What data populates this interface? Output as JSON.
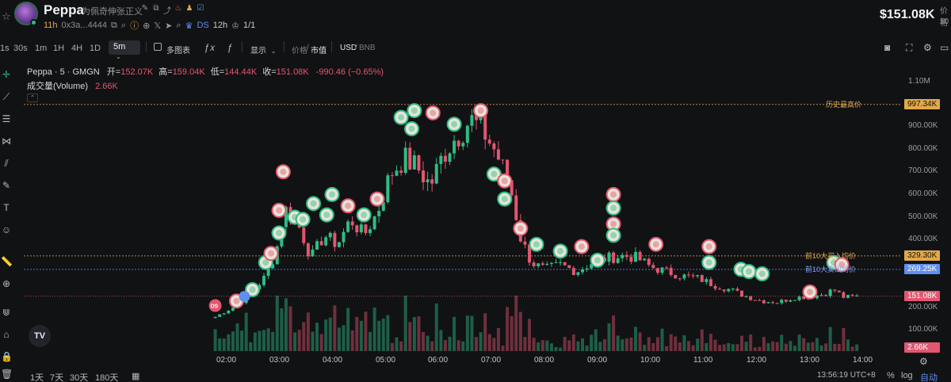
{
  "header": {
    "token_name": "Peppa",
    "subtitle": "为佩奇伸张正义",
    "age": "11h",
    "address": "0x3a...4444",
    "ds_label": "DS",
    "ds_age": "12h",
    "holders_ratio": "1/1",
    "price": "$151.08K",
    "right_label_1": "价格",
    "right_label_2": "$0"
  },
  "toolbar": {
    "timeframes": [
      "1s",
      "30s",
      "1m",
      "1H",
      "4H",
      "1D"
    ],
    "active_timeframe": "5m",
    "multi_chart": "多图表",
    "display": "显示",
    "price_label": "价格",
    "mcap_label": "市值",
    "currency_usd": "USD",
    "currency_bnb": "BNB"
  },
  "legend": {
    "symbol": "Peppa · 5 · GMGN",
    "open_label": "开=",
    "open": "152.07K",
    "high_label": "高=",
    "high": "159.04K",
    "low_label": "低=",
    "low": "144.44K",
    "close_label": "收=",
    "close": "151.08K",
    "change": "-990.46 (−0.65%)",
    "volume_label": "成交量(Volume)",
    "volume": "2.66K"
  },
  "price_lines": {
    "ath_label": "历史最高价",
    "ath_value": "997.34K",
    "top10_buy_label": "前10大买入均价",
    "top10_buy_value": "329.30K",
    "top10_sell_label": "前10大卖出均价",
    "top10_sell_value": "269.25K",
    "last_value": "151.08K",
    "volume_badge": "2.66K"
  },
  "bottom": {
    "ranges": [
      "1天",
      "7天",
      "30天",
      "180天"
    ],
    "clock": "13:56:19 UTC+8",
    "percent": "%",
    "log": "log",
    "auto": "自动"
  },
  "colors": {
    "up": "#2ebd85",
    "down": "#e2566f",
    "ath": "#e0a94a",
    "buy_avg": "#e0a94a",
    "sell_avg": "#5e8ff0",
    "background": "#111214"
  },
  "chart_data": {
    "type": "candlestick",
    "x_ticks": [
      "02:00",
      "03:00",
      "04:00",
      "05:00",
      "06:00",
      "07:00",
      "08:00",
      "09:00",
      "10:00",
      "11:00",
      "12:00",
      "13:00",
      "14:00"
    ],
    "y_ticks": [
      "1.10M",
      "1.00M",
      "900.00K",
      "800.00K",
      "700.00K",
      "600.00K",
      "500.00K",
      "400.00K",
      "300.00K",
      "200.00K",
      "100.00K",
      "0.00"
    ],
    "ylim": [
      0,
      1100000
    ],
    "series": [
      {
        "name": "Peppa",
        "close_price_approx": [
          [
            1.8,
            60000
          ],
          [
            2.2,
            110000
          ],
          [
            2.5,
            170000
          ],
          [
            2.75,
            240000
          ],
          [
            2.95,
            350000
          ],
          [
            3.1,
            540000
          ],
          [
            3.4,
            450000
          ],
          [
            3.6,
            320000
          ],
          [
            3.85,
            420000
          ],
          [
            4.1,
            380000
          ],
          [
            4.35,
            490000
          ],
          [
            4.6,
            420000
          ],
          [
            4.85,
            520000
          ],
          [
            5.1,
            690000
          ],
          [
            5.35,
            760000
          ],
          [
            5.6,
            720000
          ],
          [
            5.85,
            640000
          ],
          [
            6.1,
            780000
          ],
          [
            6.35,
            860000
          ],
          [
            6.6,
            930000
          ],
          [
            6.85,
            880000
          ],
          [
            7.1,
            780000
          ],
          [
            7.35,
            640000
          ],
          [
            7.55,
            410000
          ],
          [
            7.75,
            300000
          ],
          [
            8.0,
            270000
          ],
          [
            8.3,
            290000
          ],
          [
            8.6,
            260000
          ],
          [
            8.9,
            300000
          ],
          [
            9.2,
            320000
          ],
          [
            9.5,
            330000
          ],
          [
            9.75,
            320000
          ],
          [
            10.0,
            280000
          ],
          [
            10.3,
            260000
          ],
          [
            10.6,
            240000
          ],
          [
            10.9,
            230000
          ],
          [
            11.2,
            200000
          ],
          [
            11.5,
            180000
          ],
          [
            11.8,
            150000
          ],
          [
            12.1,
            130000
          ],
          [
            12.4,
            125000
          ],
          [
            12.7,
            145000
          ],
          [
            13.0,
            150000
          ],
          [
            13.25,
            160000
          ],
          [
            13.45,
            180000
          ],
          [
            13.65,
            145000
          ],
          [
            13.9,
            151080
          ]
        ]
      }
    ]
  }
}
